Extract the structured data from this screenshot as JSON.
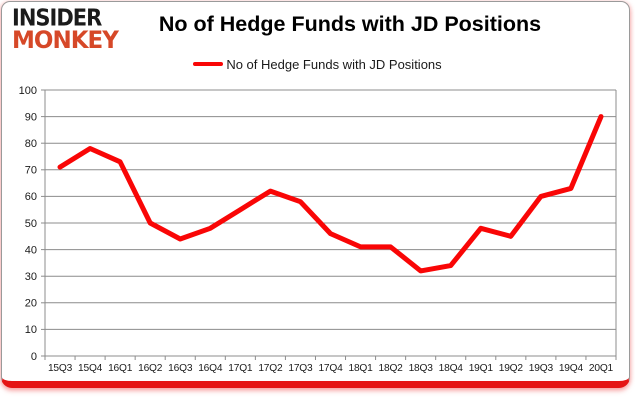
{
  "logo": {
    "word1": "INSIDER",
    "word2": "MONKEY"
  },
  "title": "No of Hedge Funds with JD Positions",
  "legend": {
    "label": "No of Hedge Funds with JD Positions"
  },
  "chart_data": {
    "type": "line",
    "title": "No of Hedge Funds with JD Positions",
    "categories": [
      "15Q3",
      "15Q4",
      "16Q1",
      "16Q2",
      "16Q3",
      "16Q4",
      "17Q1",
      "17Q2",
      "17Q3",
      "17Q4",
      "18Q1",
      "18Q2",
      "18Q3",
      "18Q4",
      "19Q1",
      "19Q2",
      "19Q3",
      "19Q4",
      "20Q1"
    ],
    "series": [
      {
        "name": "No of Hedge Funds with JD Positions",
        "color": "#f90606",
        "values": [
          71,
          78,
          73,
          50,
          44,
          48,
          55,
          62,
          58,
          46,
          41,
          41,
          32,
          34,
          48,
          45,
          60,
          63,
          90
        ]
      }
    ],
    "ylim": [
      0,
      100
    ],
    "ytick_step": 10,
    "yticks": [
      0,
      10,
      20,
      30,
      40,
      50,
      60,
      70,
      80,
      90,
      100
    ],
    "xlabel": "",
    "ylabel": "",
    "grid": true,
    "legend_position": "top-center"
  },
  "colors": {
    "line": "#f90606",
    "grid": "#8c8c8c",
    "axis_text": "#1a1a1a",
    "title_text": "#000000",
    "logo_word1": "#1b1b1b",
    "logo_word2": "#d64828",
    "card_border": "#9a9a9a",
    "card_bottom_bar": "#e51515"
  }
}
